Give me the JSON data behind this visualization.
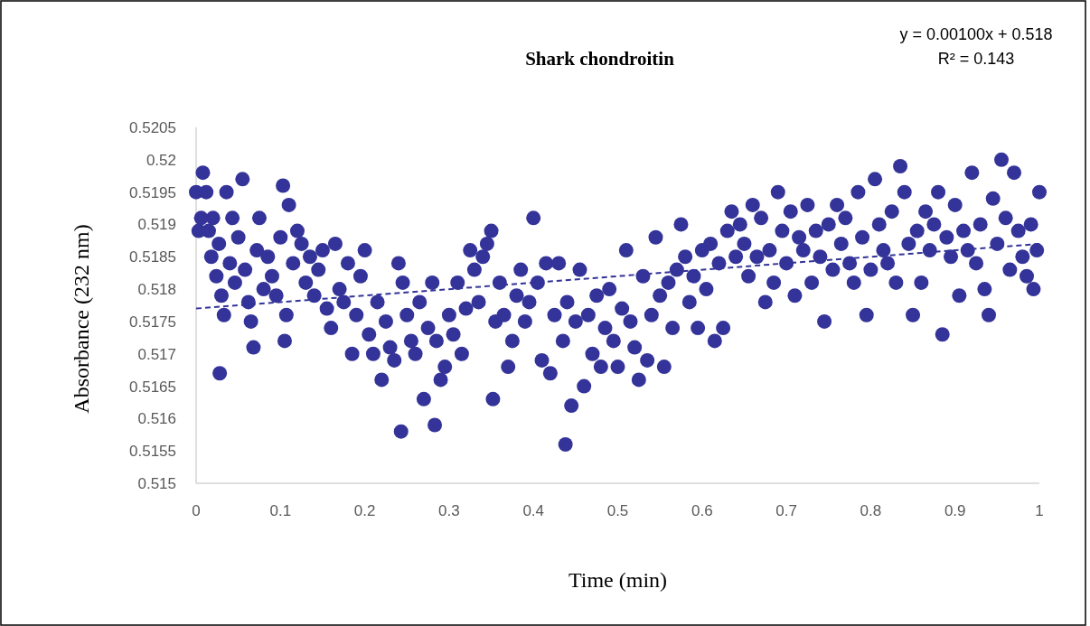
{
  "chart_data": {
    "type": "scatter",
    "title": "Shark chondroitin",
    "xlabel": "Time (min)",
    "ylabel": "Absorbance (232 nm)",
    "annotations": [
      "y = 0.00100x + 0.518",
      "R² = 0.143"
    ],
    "xlim": [
      0,
      1
    ],
    "xticks": [
      0,
      0.1,
      0.2,
      0.3,
      0.4,
      0.5,
      0.6,
      0.7,
      0.8,
      0.9,
      1
    ],
    "ylim": [
      0.515,
      0.5205
    ],
    "yticks": [
      0.515,
      0.5155,
      0.516,
      0.5165,
      0.517,
      0.5175,
      0.518,
      0.5185,
      0.519,
      0.5195,
      0.52,
      0.5205
    ],
    "grid": false,
    "marker": "circle",
    "series": [
      {
        "color": "#333399",
        "x": [
          0,
          0.003,
          0.006,
          0.008,
          0.012,
          0.015,
          0.018,
          0.02,
          0.024,
          0.027,
          0.028,
          0.03,
          0.033,
          0.036,
          0.04,
          0.043,
          0.046,
          0.05,
          0.055,
          0.058,
          0.062,
          0.065,
          0.068,
          0.072,
          0.075,
          0.08,
          0.085,
          0.09,
          0.095,
          0.1,
          0.103,
          0.105,
          0.107,
          0.11,
          0.115,
          0.12,
          0.125,
          0.13,
          0.135,
          0.14,
          0.145,
          0.15,
          0.155,
          0.16,
          0.165,
          0.17,
          0.175,
          0.18,
          0.185,
          0.19,
          0.195,
          0.2,
          0.205,
          0.21,
          0.215,
          0.22,
          0.225,
          0.23,
          0.235,
          0.24,
          0.243,
          0.245,
          0.25,
          0.255,
          0.26,
          0.265,
          0.27,
          0.275,
          0.28,
          0.283,
          0.285,
          0.29,
          0.295,
          0.3,
          0.305,
          0.31,
          0.315,
          0.32,
          0.325,
          0.33,
          0.335,
          0.34,
          0.345,
          0.35,
          0.352,
          0.355,
          0.36,
          0.365,
          0.37,
          0.375,
          0.38,
          0.385,
          0.39,
          0.395,
          0.4,
          0.405,
          0.41,
          0.415,
          0.42,
          0.425,
          0.43,
          0.435,
          0.438,
          0.44,
          0.445,
          0.45,
          0.455,
          0.46,
          0.465,
          0.47,
          0.475,
          0.48,
          0.485,
          0.49,
          0.495,
          0.5,
          0.505,
          0.51,
          0.515,
          0.52,
          0.525,
          0.53,
          0.535,
          0.54,
          0.545,
          0.55,
          0.555,
          0.56,
          0.565,
          0.57,
          0.575,
          0.58,
          0.585,
          0.59,
          0.595,
          0.6,
          0.605,
          0.61,
          0.615,
          0.62,
          0.625,
          0.63,
          0.635,
          0.64,
          0.645,
          0.65,
          0.655,
          0.66,
          0.665,
          0.67,
          0.675,
          0.68,
          0.685,
          0.69,
          0.695,
          0.7,
          0.705,
          0.71,
          0.715,
          0.72,
          0.725,
          0.73,
          0.735,
          0.74,
          0.745,
          0.75,
          0.755,
          0.76,
          0.765,
          0.77,
          0.775,
          0.78,
          0.785,
          0.79,
          0.795,
          0.8,
          0.805,
          0.81,
          0.815,
          0.82,
          0.825,
          0.83,
          0.835,
          0.84,
          0.845,
          0.85,
          0.855,
          0.86,
          0.865,
          0.87,
          0.875,
          0.88,
          0.885,
          0.89,
          0.895,
          0.9,
          0.905,
          0.91,
          0.915,
          0.92,
          0.925,
          0.93,
          0.935,
          0.94,
          0.945,
          0.95,
          0.955,
          0.96,
          0.965,
          0.97,
          0.975,
          0.98,
          0.985,
          0.99,
          0.993,
          0.997,
          1
        ],
        "values": [
          0.5195,
          0.5189,
          0.5191,
          0.5198,
          0.5195,
          0.5189,
          0.5185,
          0.5191,
          0.5182,
          0.5187,
          0.5167,
          0.5179,
          0.5176,
          0.5195,
          0.5184,
          0.5191,
          0.5181,
          0.5188,
          0.5197,
          0.5183,
          0.5178,
          0.5175,
          0.5171,
          0.5186,
          0.5191,
          0.518,
          0.5185,
          0.5182,
          0.5179,
          0.5188,
          0.5196,
          0.5172,
          0.5176,
          0.5193,
          0.5184,
          0.5189,
          0.5187,
          0.5181,
          0.5185,
          0.5179,
          0.5183,
          0.5186,
          0.5177,
          0.5174,
          0.5187,
          0.518,
          0.5178,
          0.5184,
          0.517,
          0.5176,
          0.5182,
          0.5186,
          0.5173,
          0.517,
          0.5178,
          0.5166,
          0.5175,
          0.5171,
          0.5169,
          0.5184,
          0.5158,
          0.5181,
          0.5176,
          0.5172,
          0.517,
          0.5178,
          0.5163,
          0.5174,
          0.5181,
          0.5159,
          0.5172,
          0.5166,
          0.5168,
          0.5176,
          0.5173,
          0.5181,
          0.517,
          0.5177,
          0.5186,
          0.5183,
          0.5178,
          0.5185,
          0.5187,
          0.5189,
          0.5163,
          0.5175,
          0.5181,
          0.5176,
          0.5168,
          0.5172,
          0.5179,
          0.5183,
          0.5175,
          0.5178,
          0.5191,
          0.5181,
          0.5169,
          0.5184,
          0.5167,
          0.5176,
          0.5184,
          0.5172,
          0.5156,
          0.5178,
          0.5162,
          0.5175,
          0.5183,
          0.5165,
          0.5176,
          0.517,
          0.5179,
          0.5168,
          0.5174,
          0.518,
          0.5172,
          0.5168,
          0.5177,
          0.5186,
          0.5175,
          0.5171,
          0.5166,
          0.5182,
          0.5169,
          0.5176,
          0.5188,
          0.5179,
          0.5168,
          0.5181,
          0.5174,
          0.5183,
          0.519,
          0.5185,
          0.5178,
          0.5182,
          0.5174,
          0.5186,
          0.518,
          0.5187,
          0.5172,
          0.5184,
          0.5174,
          0.5189,
          0.5192,
          0.5185,
          0.519,
          0.5187,
          0.5182,
          0.5193,
          0.5185,
          0.5191,
          0.5178,
          0.5186,
          0.5181,
          0.5195,
          0.5189,
          0.5184,
          0.5192,
          0.5179,
          0.5188,
          0.5186,
          0.5193,
          0.5181,
          0.5189,
          0.5185,
          0.5175,
          0.519,
          0.5183,
          0.5193,
          0.5187,
          0.5191,
          0.5184,
          0.5181,
          0.5195,
          0.5188,
          0.5176,
          0.5183,
          0.5197,
          0.519,
          0.5186,
          0.5184,
          0.5192,
          0.5181,
          0.5199,
          0.5195,
          0.5187,
          0.5176,
          0.5189,
          0.5181,
          0.5192,
          0.5186,
          0.519,
          0.5195,
          0.5173,
          0.5188,
          0.5185,
          0.5193,
          0.5179,
          0.5189,
          0.5186,
          0.5198,
          0.5184,
          0.519,
          0.518,
          0.5176,
          0.5194,
          0.5187,
          0.52,
          0.5191,
          0.5183,
          0.5198,
          0.5189,
          0.5185,
          0.5182,
          0.519,
          0.518,
          0.5186,
          0.5195
        ]
      },
      {
        "type": "line",
        "color": "#333399",
        "line_style": "dashed",
        "marker": "none",
        "x": [
          0,
          1
        ],
        "values": [
          0.5177,
          0.5187
        ]
      }
    ]
  }
}
